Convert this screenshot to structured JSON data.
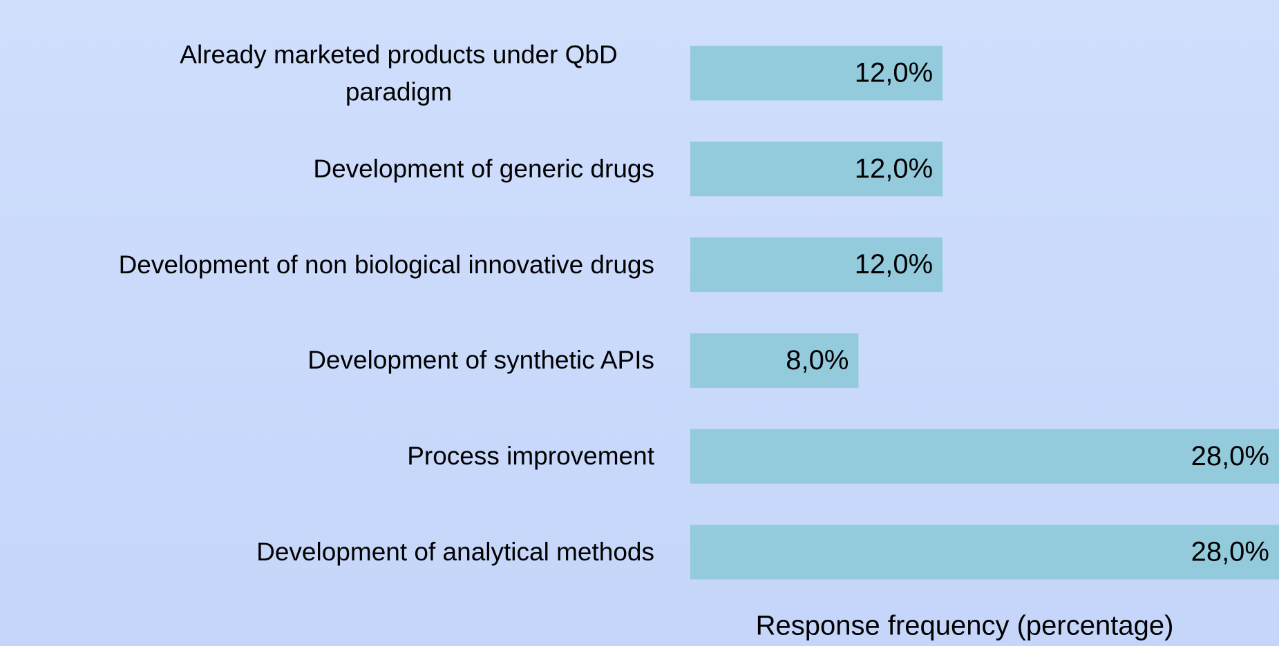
{
  "chart_data": {
    "type": "barh",
    "categories": [
      "Already marketed products under QbD paradigm",
      "Development of generic drugs",
      "Development of non biological innovative drugs",
      "Development of synthetic APIs",
      "Process improvement",
      "Development of analytical methods"
    ],
    "values": [
      12,
      12,
      12,
      8,
      28,
      28
    ],
    "value_labels": [
      "12,0%",
      "12,0%",
      "12,0%",
      "8,0%",
      "28,0%",
      "28,0%"
    ],
    "color": "#93cbdd",
    "xlabel": "Response frequency (percentage)",
    "xlim": [
      0,
      28
    ]
  }
}
